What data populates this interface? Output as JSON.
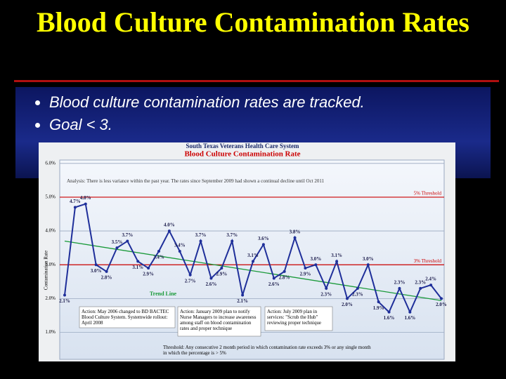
{
  "slide": {
    "title": "Blood Culture Contamination Rates",
    "bullets": [
      "Blood culture contamination rates are tracked.",
      "Goal < 3."
    ]
  },
  "chart_data": {
    "type": "line",
    "title": "South Texas Veterans Health Care System",
    "subtitle": "Blood Culture Contamination Rate",
    "y_label": "Contamination Rate",
    "ylim": [
      0.2,
      6.1
    ],
    "yticks": [
      {
        "value": 1,
        "label": "1.0%"
      },
      {
        "value": 2,
        "label": "2.0%"
      },
      {
        "value": 3,
        "label": "3.0%"
      },
      {
        "value": 4,
        "label": "4.0%"
      },
      {
        "value": 5,
        "label": "5.0%"
      },
      {
        "value": 6,
        "label": "6.0%"
      }
    ],
    "grid": true,
    "series": [
      {
        "name": "Contamination Rate",
        "color": "#1f2f9a",
        "values": [
          2.1,
          4.7,
          4.8,
          3.0,
          2.8,
          3.5,
          3.7,
          3.1,
          2.9,
          3.4,
          4.0,
          3.4,
          2.7,
          3.7,
          2.6,
          2.9,
          3.7,
          2.1,
          3.1,
          3.6,
          2.6,
          2.8,
          3.8,
          2.9,
          3.0,
          2.3,
          3.1,
          2.0,
          2.3,
          3.0,
          1.9,
          1.6,
          2.3,
          1.6,
          2.3,
          2.4,
          2.0
        ],
        "value_labels": [
          "2.1%",
          "4.7%",
          "4.8%",
          "3.0%",
          "2.8%",
          "3.5%",
          "3.7%",
          "3.1%",
          "2.9%",
          "3.4%",
          "4.0%",
          "3.4%",
          "2.7%",
          "3.7%",
          "2.6%",
          "2.9%",
          "3.7%",
          "2.1%",
          "3.1%",
          "3.6%",
          "2.6%",
          "2.8%",
          "3.8%",
          "2.9%",
          "3.0%",
          "2.3%",
          "3.1%",
          "2.0%",
          "2.3%",
          "3.0%",
          "1.9%",
          "1.6%",
          "2.3%",
          "1.6%",
          "2.3%",
          "2.4%",
          "2.0%"
        ]
      }
    ],
    "trend": {
      "name": "Trend Line",
      "color": "#1a9a3a",
      "values": [
        3.7,
        1.94
      ]
    },
    "reference_lines": [
      {
        "value": 5,
        "label": "5% Threshold",
        "color": "#cc0000"
      },
      {
        "value": 3,
        "label": "3% Threshold",
        "color": "#cc0000"
      }
    ],
    "annotations": [
      "Analysis: There is less variance within the past year. The rates since September 2009 had shown a continual decline until Oct 2011",
      "Action: May 2006 changed to BD BACTEC Blood Culture System. Systemwide rollout: April 2008",
      "Action: January 2009 plan to notify Nurse Managers to increase awareness among staff on blood contamination rates and proper technique",
      "Action: July 2009 plan in services: \"Scrub the Hub\" reviewing proper technique",
      "Threshold: Any consecutive 2 month period in which contamination rate exceeds 3% or any single month in which the percentage is > 5%"
    ]
  }
}
